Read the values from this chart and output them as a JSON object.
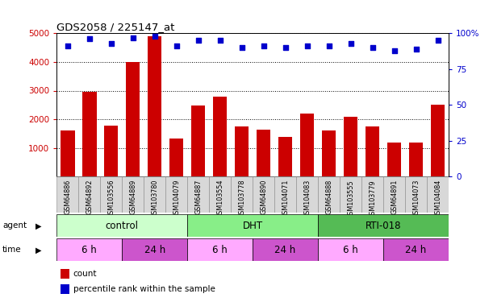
{
  "title": "GDS2058 / 225147_at",
  "samples": [
    "GSM64886",
    "GSM64892",
    "GSM103556",
    "GSM64889",
    "GSM103780",
    "GSM104079",
    "GSM64887",
    "GSM103554",
    "GSM103778",
    "GSM64890",
    "GSM104071",
    "GSM104083",
    "GSM64888",
    "GSM103555",
    "GSM103779",
    "GSM64891",
    "GSM104073",
    "GSM104084"
  ],
  "counts": [
    1620,
    2950,
    1780,
    4000,
    4900,
    1320,
    2480,
    2800,
    1750,
    1630,
    1380,
    2200,
    1600,
    2100,
    1750,
    1180,
    1200,
    2520
  ],
  "percentiles": [
    91,
    96,
    93,
    97,
    98,
    91,
    95,
    95,
    90,
    91,
    90,
    91,
    91,
    93,
    90,
    88,
    89,
    95
  ],
  "ylim_left": [
    0,
    5000
  ],
  "ylim_right": [
    0,
    100
  ],
  "yticks_left": [
    1000,
    2000,
    3000,
    4000,
    5000
  ],
  "yticks_right": [
    0,
    25,
    50,
    75,
    100
  ],
  "bar_color": "#cc0000",
  "dot_color": "#0000cc",
  "agent_groups": [
    {
      "label": "control",
      "start": 0,
      "end": 6,
      "color": "#ccffcc"
    },
    {
      "label": "DHT",
      "start": 6,
      "end": 12,
      "color": "#88ee88"
    },
    {
      "label": "RTI-018",
      "start": 12,
      "end": 18,
      "color": "#55bb55"
    }
  ],
  "time_groups": [
    {
      "label": "6 h",
      "start": 0,
      "end": 3,
      "color": "#ffaaff"
    },
    {
      "label": "24 h",
      "start": 3,
      "end": 6,
      "color": "#cc55cc"
    },
    {
      "label": "6 h",
      "start": 6,
      "end": 9,
      "color": "#ffaaff"
    },
    {
      "label": "24 h",
      "start": 9,
      "end": 12,
      "color": "#cc55cc"
    },
    {
      "label": "6 h",
      "start": 12,
      "end": 15,
      "color": "#ffaaff"
    },
    {
      "label": "24 h",
      "start": 15,
      "end": 18,
      "color": "#cc55cc"
    }
  ],
  "bar_color_hex": "#cc0000",
  "dot_color_hex": "#0000cc",
  "tick_label_color": "#cc0000",
  "right_tick_color": "#0000cc",
  "grid_color": "black"
}
